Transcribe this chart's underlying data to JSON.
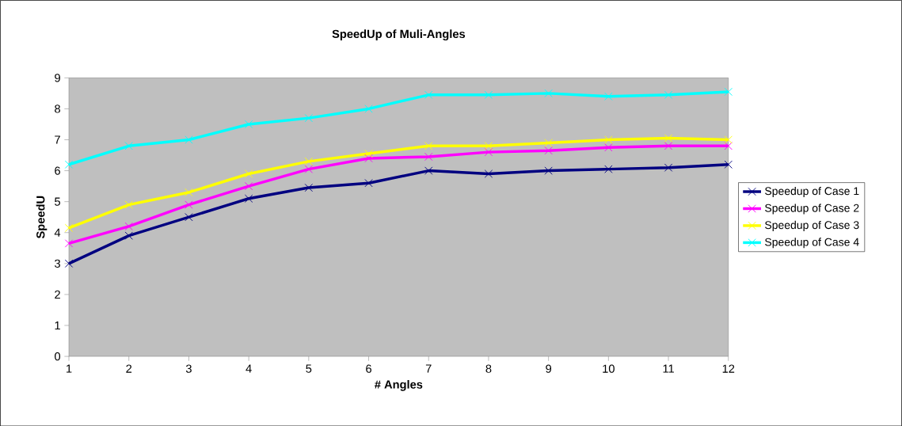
{
  "chart_data": {
    "type": "line",
    "title": "SpeedUp of Muli-Angles",
    "xlabel": "# Angles",
    "ylabel": "SpeedU",
    "categories": [
      "1",
      "2",
      "3",
      "4",
      "5",
      "6",
      "7",
      "8",
      "9",
      "10",
      "11",
      "12"
    ],
    "ylim": [
      0,
      9
    ],
    "yticks": [
      0,
      1,
      2,
      3,
      4,
      5,
      6,
      7,
      8,
      9
    ],
    "marker": "cross",
    "legend": "right",
    "series": [
      {
        "name": "Speedup of Case 1",
        "color": "#000080",
        "values": [
          3.0,
          3.9,
          4.5,
          5.1,
          5.45,
          5.6,
          6.0,
          5.9,
          6.0,
          6.05,
          6.1,
          6.2
        ]
      },
      {
        "name": "Speedup of Case 2",
        "color": "#ff00ff",
        "values": [
          3.65,
          4.2,
          4.9,
          5.5,
          6.05,
          6.4,
          6.45,
          6.6,
          6.65,
          6.75,
          6.8,
          6.8
        ]
      },
      {
        "name": "Speedup of Case 3",
        "color": "#ffff00",
        "values": [
          4.15,
          4.9,
          5.3,
          5.9,
          6.3,
          6.55,
          6.8,
          6.8,
          6.9,
          7.0,
          7.05,
          7.0
        ]
      },
      {
        "name": "Speedup of Case 4",
        "color": "#00ffff",
        "values": [
          6.2,
          6.8,
          7.0,
          7.5,
          7.7,
          8.0,
          8.45,
          8.45,
          8.5,
          8.4,
          8.45,
          8.55
        ]
      }
    ]
  }
}
